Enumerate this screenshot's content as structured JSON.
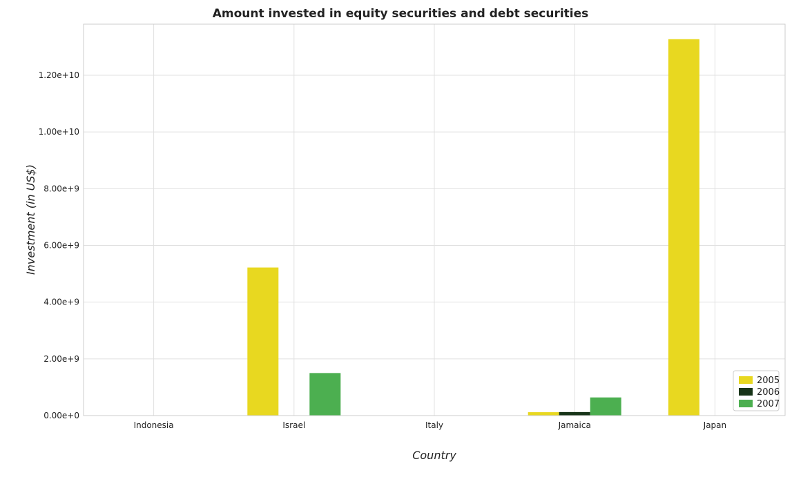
{
  "chart_data": {
    "type": "bar",
    "title": "Amount invested in equity securities and debt securities",
    "xlabel": "Country",
    "ylabel": "Investment (in US$)",
    "categories": [
      "Indonesia",
      "Israel",
      "Italy",
      "Jamaica",
      "Japan"
    ],
    "series": [
      {
        "name": "2005",
        "color": "#e8d820",
        "values": [
          0,
          5220000000,
          0,
          120000000,
          13270000000
        ]
      },
      {
        "name": "2006",
        "color": "#173418",
        "values": [
          0,
          0,
          0,
          125000000,
          0
        ]
      },
      {
        "name": "2007",
        "color": "#4caf50",
        "values": [
          0,
          1500000000,
          0,
          640000000,
          0
        ]
      }
    ],
    "ylim": [
      0,
      14000000000
    ],
    "yticks": [
      0,
      2000000000,
      4000000000,
      6000000000,
      8000000000,
      10000000000,
      12000000000
    ],
    "ytick_labels": [
      "0.00e+0",
      "2.00e+9",
      "4.00e+9",
      "6.00e+9",
      "8.00e+9",
      "1.00e+10",
      "1.20e+10"
    ],
    "grid": true,
    "legend_position": "bottom-right"
  }
}
